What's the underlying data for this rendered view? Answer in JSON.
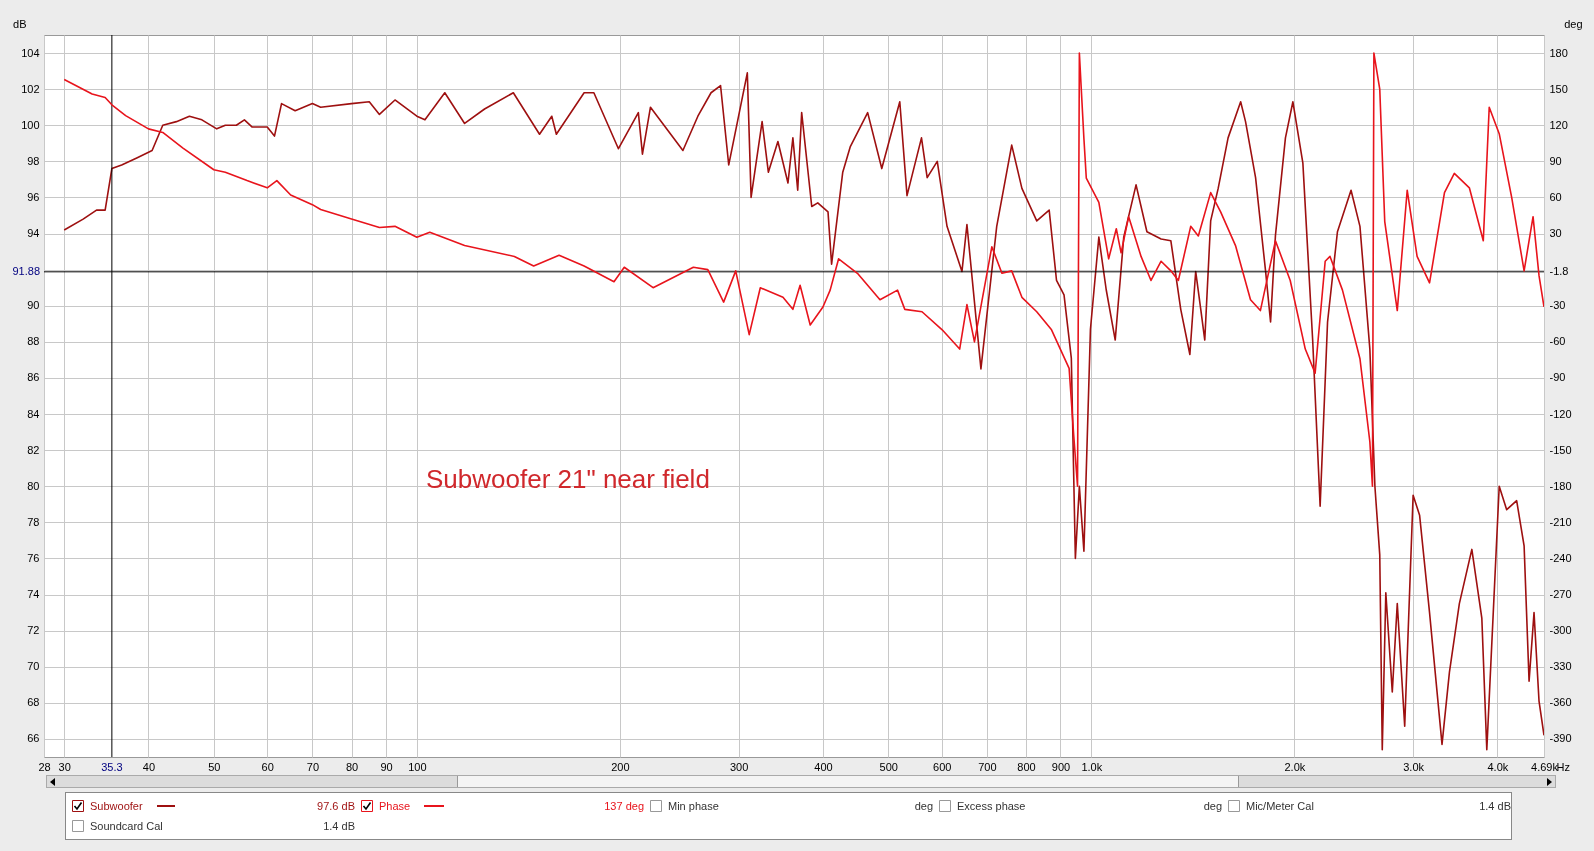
{
  "chart_data": {
    "type": "line",
    "xlabel": "Hz",
    "ylabel": "dB",
    "y2label": "deg",
    "annotations": [
      "Subwoofer 21\" near field",
      "97.6 dB",
      "137 deg",
      "Min phase",
      "deg",
      "Excess phase",
      "deg",
      "Mic/Meter Cal",
      "1.4 dB",
      "Soundcard Cal",
      "1.4 dB"
    ],
    "log": "x",
    "grid": true,
    "legend": "bottom",
    "xlim": [
      28,
      4690
    ],
    "xticks": [
      28,
      30,
      40,
      50,
      60,
      70,
      80,
      90,
      100,
      200,
      300,
      400,
      500,
      600,
      700,
      800,
      900,
      {
        "value": 1000,
        "label": "1.0k"
      },
      {
        "value": 2000,
        "label": "2.0k"
      },
      {
        "value": 3000,
        "label": "3.0k"
      },
      {
        "value": 4000,
        "label": "4.0k"
      },
      {
        "value": 4690,
        "label": "4.69k"
      }
    ],
    "ylim": [
      65,
      105
    ],
    "yticks": [
      66,
      68,
      70,
      72,
      74,
      76,
      78,
      80,
      82,
      84,
      86,
      88,
      90,
      {
        "value": 92,
        "label": null
      },
      94,
      96,
      98,
      100,
      102,
      104
    ],
    "y2lim": [
      -405,
      195
    ],
    "y2ticks": [
      -390,
      -360,
      -330,
      -300,
      -270,
      -240,
      -210,
      -180,
      -150,
      -120,
      -90,
      -60,
      -30,
      -1.8,
      30,
      60,
      90,
      120,
      150,
      180
    ],
    "ref_lines": [
      {
        "axis": "x",
        "value": 35.3,
        "label": "35.3",
        "color": "#000000"
      },
      {
        "axis": "y",
        "value": 91.88,
        "label": "91.88",
        "color": "#000000"
      }
    ],
    "series": [
      {
        "name": "Subwoofer",
        "color": "#9e1010",
        "x": [
          30,
          32,
          33.5,
          34.5,
          35.3,
          36.5,
          38.5,
          40.5,
          42,
          44,
          46,
          48,
          50.5,
          52,
          54,
          55.5,
          57,
          60,
          61.5,
          63,
          66,
          70,
          72,
          80,
          85,
          88,
          92.8,
          100,
          102.8,
          110,
          117.7,
          126,
          139,
          152,
          158.5,
          161,
          177,
          183,
          199,
          213,
          216,
          222,
          248,
          261,
          273,
          282,
          290,
          309,
          313,
          325,
          332,
          343,
          355,
          361,
          367,
          372,
          385,
          393,
          407,
          412,
          428,
          439,
          466,
          489,
          520,
          533,
          560,
          571,
          591,
          611,
          643,
          654,
          686,
          724,
          762,
          789,
          830,
          866,
          888,
          911,
          934,
          947,
          960,
          975,
          997,
          1026,
          1052,
          1085,
          1117,
          1165,
          1209,
          1269,
          1312,
          1357,
          1400,
          1428,
          1453,
          1473,
          1503,
          1542,
          1595,
          1665,
          1693,
          1752,
          1813,
          1844,
          1875,
          1940,
          1990,
          2059,
          2129,
          2184,
          2240,
          2317,
          2427,
          2502,
          2588,
          2633,
          2677,
          2700,
          2733,
          2794,
          2842,
          2915,
          3000,
          3067,
          3173,
          3311,
          3396,
          3513,
          3666,
          3793,
          3858,
          4025,
          4129,
          4272,
          4382,
          4457,
          4533,
          4611,
          4690
        ],
        "values": [
          94.2,
          94.8,
          95.3,
          95.3,
          97.6,
          97.8,
          98.2,
          98.6,
          100.0,
          100.2,
          100.5,
          100.3,
          99.8,
          100.0,
          100.0,
          100.3,
          99.9,
          99.9,
          99.4,
          101.2,
          100.8,
          101.2,
          101.0,
          101.2,
          101.3,
          100.6,
          101.4,
          100.5,
          100.3,
          101.8,
          100.1,
          100.9,
          101.8,
          99.5,
          100.5,
          99.5,
          101.8,
          101.8,
          98.7,
          100.7,
          98.4,
          101.0,
          98.6,
          100.5,
          101.8,
          102.2,
          97.8,
          102.9,
          96.0,
          100.2,
          97.4,
          99.1,
          96.8,
          99.3,
          96.4,
          100.7,
          95.5,
          95.7,
          95.2,
          92.3,
          97.4,
          98.8,
          100.7,
          97.6,
          101.3,
          96.1,
          99.3,
          97.1,
          98.0,
          94.4,
          91.9,
          94.5,
          86.5,
          94.4,
          98.9,
          96.5,
          94.7,
          95.3,
          91.4,
          90.6,
          87.1,
          76.0,
          80.0,
          76.4,
          88.7,
          93.8,
          90.9,
          88.1,
          93.8,
          96.7,
          94.1,
          93.7,
          93.6,
          89.8,
          87.3,
          91.9,
          89.8,
          88.1,
          94.7,
          96.5,
          99.3,
          101.3,
          100.2,
          97.1,
          91.9,
          89.1,
          93.9,
          99.3,
          101.3,
          97.9,
          88.1,
          78.9,
          89.1,
          94.1,
          96.4,
          94.4,
          87.6,
          80.0,
          76.2,
          65.4,
          74.1,
          68.6,
          73.5,
          66.7,
          79.5,
          78.4,
          73.0,
          65.7,
          69.7,
          73.5,
          76.5,
          72.7,
          65.4,
          80.0,
          78.7,
          79.2,
          76.7,
          69.2,
          73.0,
          68.1,
          66.2
        ]
      },
      {
        "name": "Phase",
        "color": "#e8141c",
        "axis": "y2",
        "x": [
          30,
          33,
          34.5,
          35.3,
          37,
          40,
          42,
          45,
          50,
          52,
          56,
          60,
          62,
          65,
          70,
          72,
          80,
          88,
          92.8,
          100,
          104.5,
          117.7,
          139.5,
          149,
          162.5,
          177,
          196,
          203,
          224,
          257,
          270,
          285,
          297,
          311,
          323,
          349,
          361,
          370,
          383,
          400,
          410,
          422,
          450,
          486,
          516,
          529,
          561,
          601,
          638,
          654,
          671,
          712,
          737,
          762,
          789,
          830,
          873,
          927,
          942,
          954,
          960,
          975,
          983,
          1026,
          1061,
          1089,
          1107,
          1136,
          1185,
          1226,
          1269,
          1312,
          1346,
          1404,
          1441,
          1503,
          1555,
          1636,
          1722,
          1781,
          1875,
          1972,
          2076,
          2147,
          2222,
          2259,
          2357,
          2502,
          2588,
          2611,
          2624,
          2677,
          2723,
          2842,
          2940,
          3041,
          3173,
          3339,
          3453,
          3635,
          3812,
          3890,
          4025,
          4200,
          4382,
          4518,
          4611,
          4690
        ],
        "values": [
          158,
          146,
          143,
          137,
          128,
          117,
          114,
          101,
          83,
          81,
          74,
          68,
          74,
          62,
          54,
          50,
          42,
          35,
          36,
          27,
          31,
          20,
          11,
          3,
          12,
          3,
          -10,
          2,
          -15,
          2,
          0,
          -27,
          -1,
          -54,
          -15,
          -23,
          -33,
          -13,
          -46,
          -31,
          -17,
          9,
          -3,
          -25,
          -17,
          -33,
          -35,
          -50,
          -66,
          -29,
          -60,
          19,
          -3,
          -1,
          -23,
          -35,
          -50,
          -82,
          -139,
          -180,
          180,
          109,
          76,
          56,
          9,
          34,
          14,
          44,
          11,
          -9,
          7,
          -1,
          -9,
          36,
          28,
          64,
          48,
          20,
          -25,
          -34,
          24,
          -9,
          -66,
          -86,
          7,
          11,
          -17,
          -74,
          -143,
          -180,
          180,
          150,
          40,
          -34,
          66,
          11,
          -11,
          64,
          80,
          68,
          24,
          135,
          113,
          60,
          -1,
          44,
          -5,
          -31
        ]
      }
    ]
  }
}
